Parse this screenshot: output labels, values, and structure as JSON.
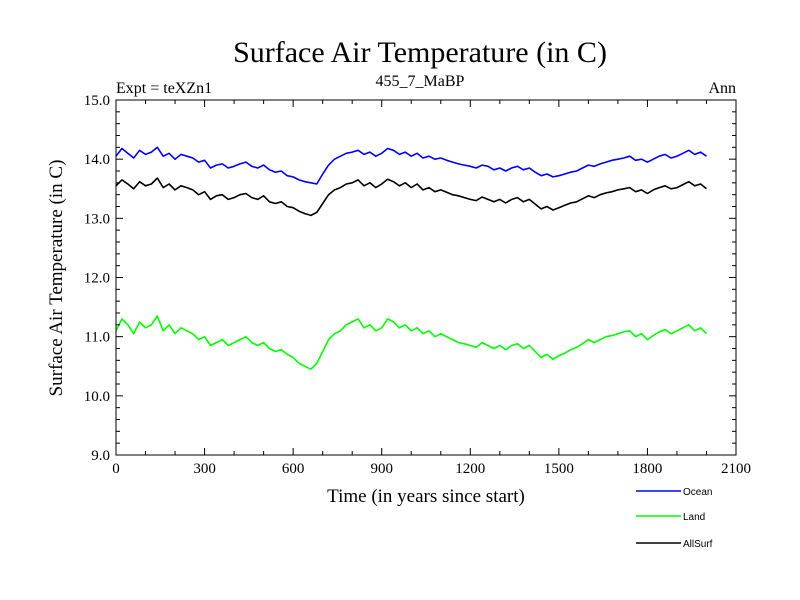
{
  "chart_data": {
    "type": "line",
    "title": "Surface Air Temperature (in C)",
    "subtitle_left": "Expt = teXZn1",
    "subtitle_center": "455_7_MaBP",
    "subtitle_right": "Ann",
    "xlabel": "Time (in years since start)",
    "ylabel": "Surface Air Temperature (in C)",
    "xlim": [
      0,
      2100
    ],
    "ylim": [
      9.0,
      15.0
    ],
    "xticks": [
      0,
      300,
      600,
      900,
      1200,
      1500,
      1800,
      2100
    ],
    "yticks": [
      9.0,
      10.0,
      11.0,
      12.0,
      13.0,
      14.0,
      15.0
    ],
    "xtick_labels": [
      "0",
      "300",
      "600",
      "900",
      "1200",
      "1500",
      "1800",
      "2100"
    ],
    "ytick_labels": [
      "9.0",
      "10.0",
      "11.0",
      "12.0",
      "13.0",
      "14.0",
      "15.0"
    ],
    "x_step": 20,
    "series": [
      {
        "name": "Ocean",
        "color": "#0000ff",
        "values": [
          14.05,
          14.18,
          14.1,
          14.02,
          14.15,
          14.08,
          14.12,
          14.2,
          14.05,
          14.1,
          14.0,
          14.08,
          14.05,
          14.02,
          13.95,
          13.98,
          13.85,
          13.9,
          13.92,
          13.85,
          13.88,
          13.92,
          13.95,
          13.88,
          13.85,
          13.9,
          13.82,
          13.78,
          13.8,
          13.72,
          13.7,
          13.65,
          13.62,
          13.6,
          13.58,
          13.75,
          13.9,
          14.0,
          14.05,
          14.1,
          14.12,
          14.15,
          14.08,
          14.12,
          14.05,
          14.1,
          14.18,
          14.15,
          14.08,
          14.12,
          14.05,
          14.1,
          14.02,
          14.05,
          14.0,
          14.02,
          13.98,
          13.95,
          13.92,
          13.9,
          13.88,
          13.85,
          13.9,
          13.88,
          13.82,
          13.85,
          13.8,
          13.85,
          13.88,
          13.82,
          13.85,
          13.78,
          13.72,
          13.75,
          13.7,
          13.72,
          13.75,
          13.78,
          13.8,
          13.85,
          13.9,
          13.88,
          13.92,
          13.95,
          13.98,
          14.0,
          14.02,
          14.05,
          13.98,
          14.0,
          13.95,
          14.0,
          14.05,
          14.08,
          14.02,
          14.05,
          14.1,
          14.15,
          14.08,
          14.12,
          14.05
        ]
      },
      {
        "name": "Land",
        "color": "#00ff00",
        "values": [
          11.1,
          11.3,
          11.2,
          11.05,
          11.25,
          11.15,
          11.2,
          11.35,
          11.1,
          11.2,
          11.05,
          11.15,
          11.1,
          11.05,
          10.95,
          11.0,
          10.85,
          10.9,
          10.95,
          10.85,
          10.9,
          10.95,
          11.0,
          10.9,
          10.85,
          10.9,
          10.8,
          10.75,
          10.78,
          10.7,
          10.65,
          10.55,
          10.5,
          10.45,
          10.55,
          10.75,
          10.95,
          11.05,
          11.1,
          11.2,
          11.25,
          11.3,
          11.15,
          11.2,
          11.1,
          11.15,
          11.3,
          11.25,
          11.15,
          11.2,
          11.1,
          11.15,
          11.05,
          11.1,
          11.0,
          11.05,
          11.0,
          10.95,
          10.9,
          10.88,
          10.85,
          10.82,
          10.9,
          10.85,
          10.8,
          10.85,
          10.78,
          10.85,
          10.88,
          10.8,
          10.85,
          10.75,
          10.65,
          10.7,
          10.62,
          10.68,
          10.72,
          10.78,
          10.82,
          10.88,
          10.95,
          10.9,
          10.95,
          11.0,
          11.02,
          11.05,
          11.08,
          11.1,
          11.0,
          11.05,
          10.95,
          11.02,
          11.08,
          11.12,
          11.05,
          11.1,
          11.15,
          11.2,
          11.1,
          11.15,
          11.05
        ]
      },
      {
        "name": "AllSurf",
        "color": "#000000",
        "values": [
          13.55,
          13.65,
          13.58,
          13.5,
          13.62,
          13.55,
          13.58,
          13.68,
          13.52,
          13.58,
          13.48,
          13.55,
          13.52,
          13.48,
          13.4,
          13.45,
          13.32,
          13.38,
          13.4,
          13.32,
          13.35,
          13.4,
          13.42,
          13.35,
          13.32,
          13.38,
          13.28,
          13.25,
          13.28,
          13.2,
          13.18,
          13.12,
          13.08,
          13.05,
          13.1,
          13.25,
          13.4,
          13.48,
          13.52,
          13.58,
          13.6,
          13.65,
          13.55,
          13.6,
          13.52,
          13.58,
          13.66,
          13.62,
          13.55,
          13.6,
          13.52,
          13.58,
          13.48,
          13.52,
          13.45,
          13.48,
          13.44,
          13.4,
          13.38,
          13.35,
          13.32,
          13.3,
          13.36,
          13.32,
          13.28,
          13.32,
          13.26,
          13.32,
          13.35,
          13.28,
          13.32,
          13.24,
          13.16,
          13.2,
          13.14,
          13.18,
          13.22,
          13.26,
          13.28,
          13.33,
          13.38,
          13.35,
          13.4,
          13.43,
          13.45,
          13.48,
          13.5,
          13.52,
          13.45,
          13.48,
          13.42,
          13.48,
          13.52,
          13.55,
          13.5,
          13.52,
          13.57,
          13.62,
          13.55,
          13.58,
          13.5
        ]
      }
    ]
  }
}
